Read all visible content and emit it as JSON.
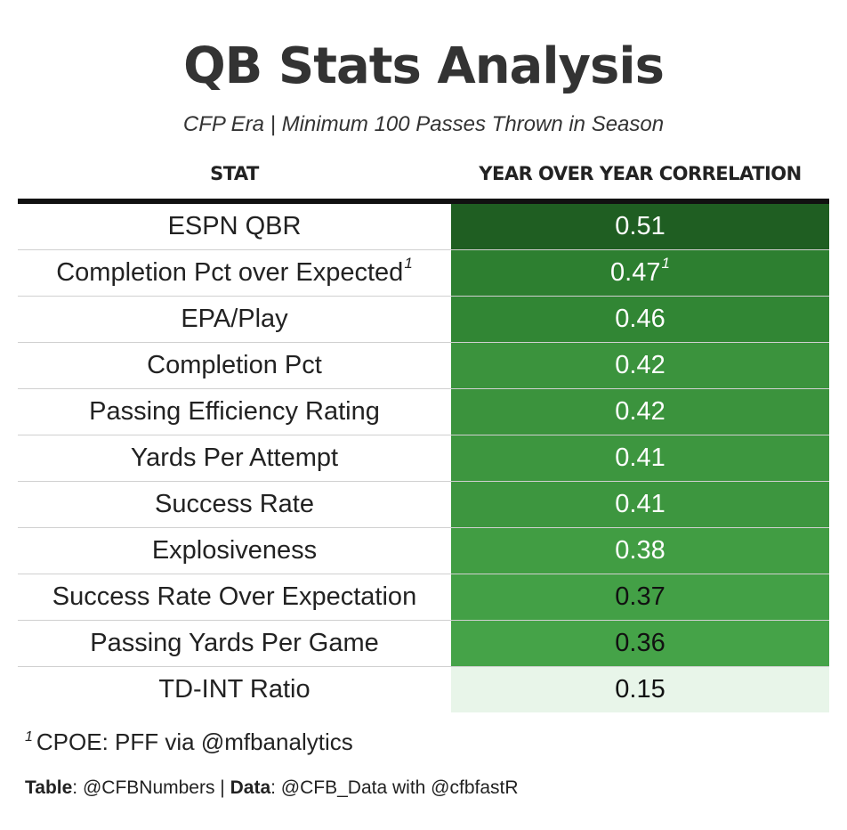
{
  "title": "QB Stats Analysis",
  "subtitle": "CFP Era | Minimum 100 Passes Thrown in Season",
  "chart_data": {
    "type": "table",
    "columns": [
      "STAT",
      "YEAR OVER YEAR CORRELATION"
    ],
    "rows": [
      {
        "stat": "ESPN QBR",
        "value": "0.51",
        "value_footnote": "",
        "stat_footnote": "",
        "fill": "#1f5e22",
        "text_color": "#ffffff"
      },
      {
        "stat": "Completion Pct over Expected",
        "stat_footnote": "1",
        "value": "0.47",
        "value_footnote": "1",
        "fill": "#2d7f30",
        "text_color": "#ffffff"
      },
      {
        "stat": "EPA/Play",
        "value": "0.46",
        "value_footnote": "",
        "stat_footnote": "",
        "fill": "#318634",
        "text_color": "#ffffff"
      },
      {
        "stat": "Completion Pct",
        "value": "0.42",
        "value_footnote": "",
        "stat_footnote": "",
        "fill": "#3b933d",
        "text_color": "#ffffff"
      },
      {
        "stat": "Passing Efficiency Rating",
        "value": "0.42",
        "value_footnote": "",
        "stat_footnote": "",
        "fill": "#3b933d",
        "text_color": "#ffffff"
      },
      {
        "stat": "Yards Per Attempt",
        "value": "0.41",
        "value_footnote": "",
        "stat_footnote": "",
        "fill": "#3d963f",
        "text_color": "#ffffff"
      },
      {
        "stat": "Success Rate",
        "value": "0.41",
        "value_footnote": "",
        "stat_footnote": "",
        "fill": "#3d963f",
        "text_color": "#ffffff"
      },
      {
        "stat": "Explosiveness",
        "value": "0.38",
        "value_footnote": "",
        "stat_footnote": "",
        "fill": "#419d43",
        "text_color": "#ffffff"
      },
      {
        "stat": "Success Rate Over Expectation",
        "value": "0.37",
        "value_footnote": "",
        "stat_footnote": "",
        "fill": "#43a046",
        "text_color": "#111111"
      },
      {
        "stat": "Passing Yards Per Game",
        "value": "0.36",
        "value_footnote": "",
        "stat_footnote": "",
        "fill": "#45a348",
        "text_color": "#111111"
      },
      {
        "stat": "TD-INT Ratio",
        "value": "0.15",
        "value_footnote": "",
        "stat_footnote": "",
        "fill": "#e8f5e9",
        "text_color": "#111111"
      }
    ]
  },
  "footnote": {
    "mark": "1",
    "text": "CPOE: PFF via @mfbanalytics"
  },
  "credits": {
    "table_label": "Table",
    "table_value": ": @CFBNumbers | ",
    "data_label": "Data",
    "data_value": ": @CFB_Data with @cfbfastR"
  }
}
